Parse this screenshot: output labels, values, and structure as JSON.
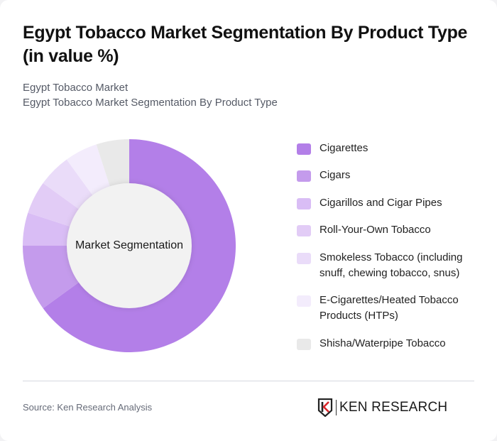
{
  "header": {
    "title": "Egypt Tobacco Market Segmentation By Product Type (in value %)",
    "breadcrumb": [
      "Egypt Tobacco Market",
      "Egypt Tobacco Market Segmentation By Product Type"
    ]
  },
  "chart": {
    "center_label": "Market Segmentation"
  },
  "legend": [
    {
      "label": "Cigarettes",
      "color": "#b37fe8"
    },
    {
      "label": "Cigars",
      "color": "#c49bec"
    },
    {
      "label": "Cigarillos and Cigar Pipes",
      "color": "#d9bdf5"
    },
    {
      "label": "Roll-Your-Own Tobacco",
      "color": "#e2ccf6"
    },
    {
      "label": "Smokeless Tobacco (including snuff, chewing tobacco, snus)",
      "color": "#eadcf9"
    },
    {
      "label": "E-Cigarettes/Heated Tobacco Products (HTPs)",
      "color": "#f3ecfc"
    },
    {
      "label": "Shisha/Waterpipe Tobacco",
      "color": "#e9e9e9"
    }
  ],
  "footer": {
    "source": "Source: Ken Research Analysis",
    "logo_text": "KEN RESEARCH"
  },
  "chart_data": {
    "type": "pie",
    "variant": "donut",
    "title": "Egypt Tobacco Market Segmentation By Product Type (in value %)",
    "center_label": "Market Segmentation",
    "categories": [
      "Cigarettes",
      "Cigars",
      "Cigarillos and Cigar Pipes",
      "Roll-Your-Own Tobacco",
      "Smokeless Tobacco (including snuff, chewing tobacco, snus)",
      "E-Cigarettes/Heated Tobacco Products (HTPs)",
      "Shisha/Waterpipe Tobacco"
    ],
    "values": [
      65,
      10,
      5,
      5,
      5,
      5,
      5
    ],
    "colors": [
      "#b37fe8",
      "#c49bec",
      "#d9bdf5",
      "#e2ccf6",
      "#eadcf9",
      "#f3ecfc",
      "#e9e9e9"
    ],
    "legend_position": "right",
    "unit": "%"
  }
}
